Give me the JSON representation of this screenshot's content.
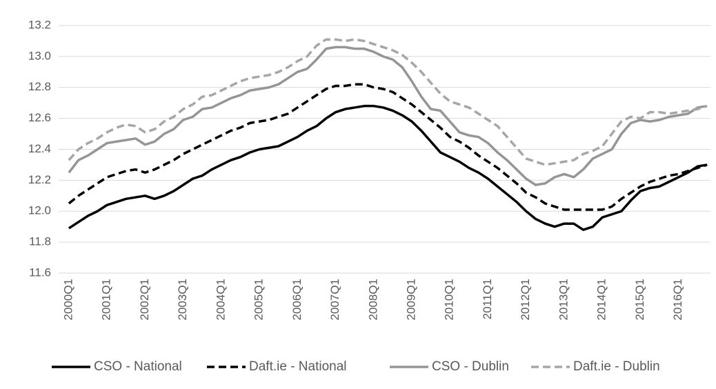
{
  "chart_data": {
    "type": "line",
    "categories": [
      "2000Q1",
      null,
      null,
      null,
      "2001Q1",
      null,
      null,
      null,
      "2002Q1",
      null,
      null,
      null,
      "2003Q1",
      null,
      null,
      null,
      "2004Q1",
      null,
      null,
      null,
      "2005Q1",
      null,
      null,
      null,
      "2006Q1",
      null,
      null,
      null,
      "2007Q1",
      null,
      null,
      null,
      "2008Q1",
      null,
      null,
      null,
      "2009Q1",
      null,
      null,
      null,
      "2010Q1",
      null,
      null,
      null,
      "2011Q1",
      null,
      null,
      null,
      "2012Q1",
      null,
      null,
      null,
      "2013Q1",
      null,
      null,
      null,
      "2014Q1",
      null,
      null,
      null,
      "2015Q1",
      null,
      null,
      null,
      "2016Q1",
      null,
      null,
      null
    ],
    "series": [
      {
        "name": "CSO - National",
        "color": "#000000",
        "dashed": false,
        "values": [
          11.89,
          11.93,
          11.97,
          12.0,
          12.04,
          12.06,
          12.08,
          12.09,
          12.1,
          12.08,
          12.1,
          12.13,
          12.17,
          12.21,
          12.23,
          12.27,
          12.3,
          12.33,
          12.35,
          12.38,
          12.4,
          12.41,
          12.42,
          12.45,
          12.48,
          12.52,
          12.55,
          12.6,
          12.64,
          12.66,
          12.67,
          12.68,
          12.68,
          12.67,
          12.65,
          12.62,
          12.58,
          12.52,
          12.45,
          12.38,
          12.35,
          12.32,
          12.28,
          12.25,
          12.21,
          12.16,
          12.11,
          12.06,
          12.0,
          11.95,
          11.92,
          11.9,
          11.92,
          11.92,
          11.88,
          11.9,
          11.96,
          11.98,
          12.0,
          12.07,
          12.13,
          12.15,
          12.16,
          12.19,
          12.22,
          12.25,
          12.29,
          12.3
        ]
      },
      {
        "name": "Daft.ie - National",
        "color": "#000000",
        "dashed": true,
        "values": [
          12.05,
          12.1,
          12.14,
          12.18,
          12.22,
          12.24,
          12.26,
          12.27,
          12.25,
          12.27,
          12.3,
          12.33,
          12.37,
          12.4,
          12.43,
          12.46,
          12.49,
          12.52,
          12.54,
          12.57,
          12.58,
          12.59,
          12.61,
          12.63,
          12.67,
          12.71,
          12.75,
          12.79,
          12.81,
          12.81,
          12.82,
          12.82,
          12.8,
          12.79,
          12.77,
          12.73,
          12.69,
          12.64,
          12.59,
          12.54,
          12.48,
          12.45,
          12.41,
          12.36,
          12.32,
          12.28,
          12.23,
          12.18,
          12.12,
          12.09,
          12.05,
          12.03,
          12.01,
          12.01,
          12.01,
          12.01,
          12.01,
          12.03,
          12.08,
          12.12,
          12.16,
          12.19,
          12.21,
          12.23,
          12.24,
          12.26,
          12.28,
          12.3
        ]
      },
      {
        "name": "CSO - Dublin",
        "color": "#959595",
        "dashed": false,
        "values": [
          12.25,
          12.33,
          12.36,
          12.4,
          12.44,
          12.45,
          12.46,
          12.47,
          12.43,
          12.45,
          12.5,
          12.53,
          12.59,
          12.61,
          12.66,
          12.67,
          12.7,
          12.73,
          12.75,
          12.78,
          12.79,
          12.8,
          12.82,
          12.86,
          12.9,
          12.92,
          12.98,
          13.05,
          13.06,
          13.06,
          13.05,
          13.05,
          13.03,
          13.0,
          12.98,
          12.93,
          12.84,
          12.74,
          12.66,
          12.65,
          12.58,
          12.51,
          12.49,
          12.48,
          12.44,
          12.38,
          12.33,
          12.27,
          12.21,
          12.17,
          12.18,
          12.22,
          12.24,
          12.22,
          12.27,
          12.34,
          12.37,
          12.4,
          12.5,
          12.57,
          12.59,
          12.58,
          12.59,
          12.61,
          12.62,
          12.63,
          12.67,
          12.68
        ]
      },
      {
        "name": "Daft.ie - Dublin",
        "color": "#a6a6a6",
        "dashed": true,
        "values": [
          12.33,
          12.4,
          12.44,
          12.47,
          12.51,
          12.54,
          12.56,
          12.55,
          12.51,
          12.53,
          12.58,
          12.61,
          12.66,
          12.69,
          12.74,
          12.75,
          12.78,
          12.81,
          12.84,
          12.86,
          12.87,
          12.88,
          12.9,
          12.93,
          12.97,
          13.0,
          13.07,
          13.11,
          13.11,
          13.1,
          13.11,
          13.1,
          13.08,
          13.06,
          13.04,
          13.01,
          12.96,
          12.9,
          12.83,
          12.76,
          12.71,
          12.69,
          12.67,
          12.63,
          12.59,
          12.55,
          12.48,
          12.41,
          12.34,
          12.32,
          12.3,
          12.31,
          12.32,
          12.33,
          12.37,
          12.39,
          12.42,
          12.5,
          12.58,
          12.61,
          12.6,
          12.64,
          12.64,
          12.63,
          12.64,
          12.65,
          12.66,
          12.68
        ]
      }
    ],
    "ylim": [
      11.6,
      13.2
    ],
    "yticks": [
      11.6,
      11.8,
      {
        "value": 12,
        "label": "12.0"
      },
      12.2,
      12.4,
      12.6,
      12.8,
      {
        "value": 13,
        "label": "13.0"
      },
      13.2
    ],
    "grid": true,
    "legend": "bottom"
  }
}
